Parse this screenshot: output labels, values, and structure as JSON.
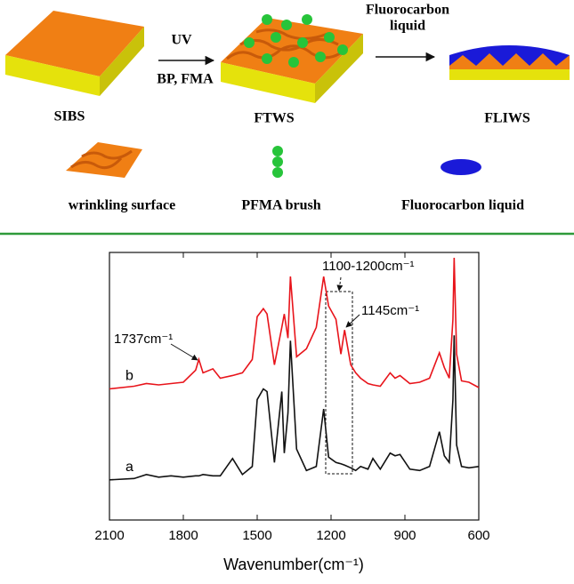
{
  "diagram": {
    "arrow1_top": "UV",
    "arrow1_bottom": "BP, FMA",
    "arrow2_top": [
      "Fluorocarbon",
      "liquid"
    ],
    "stages": [
      "SIBS",
      "FTWS",
      "FLIWS"
    ],
    "legend": [
      "wrinkling surface",
      "PFMA brush",
      "Fluorocarbon liquid"
    ]
  },
  "chart_data": {
    "type": "line",
    "xlabel": "Wavenumber(cm⁻¹)",
    "xlim": [
      2100,
      600
    ],
    "xticks": [
      2100,
      1800,
      1500,
      1200,
      900,
      600
    ],
    "ylim": [
      0,
      100
    ],
    "annotations": [
      "1737cm⁻¹",
      "1100-1200cm⁻¹",
      "1145cm⁻¹"
    ],
    "x": [
      2100,
      2000,
      1950,
      1900,
      1850,
      1800,
      1750,
      1737,
      1720,
      1680,
      1650,
      1600,
      1560,
      1520,
      1500,
      1475,
      1460,
      1430,
      1400,
      1390,
      1375,
      1365,
      1340,
      1300,
      1260,
      1230,
      1210,
      1180,
      1160,
      1145,
      1120,
      1100,
      1080,
      1050,
      1030,
      1000,
      960,
      940,
      920,
      880,
      840,
      800,
      760,
      740,
      720,
      705,
      700,
      690,
      670,
      640,
      600
    ],
    "series": [
      {
        "name": "b",
        "color": "#e8141b",
        "values": [
          49,
          50,
          51,
          50.5,
          51,
          51.5,
          56,
          60,
          55,
          56.5,
          53,
          54,
          55,
          60,
          76,
          79,
          77,
          58,
          72,
          77,
          68,
          91,
          61,
          64,
          72,
          91,
          80,
          75,
          62,
          71,
          58,
          55,
          53,
          51,
          50.5,
          50,
          55,
          53,
          54,
          51,
          51.5,
          53,
          62.5,
          57,
          53,
          75,
          98,
          62,
          52,
          51.5,
          49.5
        ]
      },
      {
        "name": "a",
        "color": "#111111",
        "values": [
          15,
          15.5,
          17,
          16,
          16.5,
          16,
          16.5,
          16.5,
          17,
          16.5,
          16.5,
          23,
          17,
          20,
          45,
          49,
          48,
          21.5,
          48,
          25,
          40,
          67,
          26.5,
          18.5,
          20,
          41.5,
          23.5,
          21.5,
          21,
          20.5,
          19.5,
          18.5,
          20,
          19,
          23,
          19,
          25,
          24,
          24.5,
          19,
          18.5,
          20,
          33,
          24,
          21.5,
          45,
          69,
          28,
          20,
          19.5,
          20
        ]
      }
    ]
  }
}
